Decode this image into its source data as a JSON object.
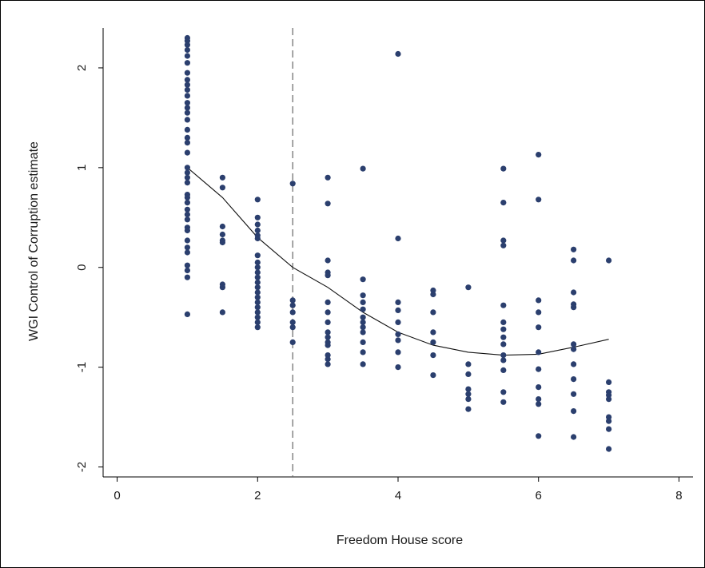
{
  "chart_data": {
    "type": "scatter",
    "xlabel": "Freedom House score",
    "ylabel": "WGI Control of Corruption estimate",
    "xlim": [
      -0.2,
      8.2
    ],
    "ylim": [
      -2.1,
      2.4
    ],
    "x_ticks": [
      "0",
      "2",
      "4",
      "6",
      "8"
    ],
    "x_tick_values": [
      0,
      2,
      4,
      6,
      8
    ],
    "y_ticks": [
      "-2",
      "-1",
      "0",
      "1",
      "2"
    ],
    "y_tick_values": [
      -2,
      -1,
      0,
      1,
      2
    ],
    "grid": false,
    "reference_line": {
      "x": 2.5,
      "style": "dashed"
    },
    "fit_curve": {
      "type": "quadratic",
      "x_range": [
        1,
        7
      ],
      "points": [
        [
          1,
          1.0
        ],
        [
          1.5,
          0.7
        ],
        [
          2,
          0.3
        ],
        [
          2.5,
          0.0
        ],
        [
          3,
          -0.2
        ],
        [
          3.5,
          -0.45
        ],
        [
          4,
          -0.65
        ],
        [
          4.5,
          -0.78
        ],
        [
          5,
          -0.85
        ],
        [
          5.5,
          -0.88
        ],
        [
          6,
          -0.87
        ],
        [
          6.5,
          -0.8
        ],
        [
          7,
          -0.72
        ]
      ]
    },
    "series": [
      {
        "marker_color": "#2b3f6e",
        "points": [
          [
            1,
            2.3
          ],
          [
            1,
            2.27
          ],
          [
            1,
            2.23
          ],
          [
            1,
            2.18
          ],
          [
            1,
            2.12
          ],
          [
            1,
            2.05
          ],
          [
            1,
            1.95
          ],
          [
            1,
            1.88
          ],
          [
            1,
            1.83
          ],
          [
            1,
            1.78
          ],
          [
            1,
            1.72
          ],
          [
            1,
            1.65
          ],
          [
            1,
            1.6
          ],
          [
            1,
            1.55
          ],
          [
            1,
            1.48
          ],
          [
            1,
            1.38
          ],
          [
            1,
            1.3
          ],
          [
            1,
            1.25
          ],
          [
            1,
            1.15
          ],
          [
            1,
            1.0
          ],
          [
            1,
            0.95
          ],
          [
            1,
            0.9
          ],
          [
            1,
            0.85
          ],
          [
            1,
            0.73
          ],
          [
            1,
            0.7
          ],
          [
            1,
            0.65
          ],
          [
            1,
            0.58
          ],
          [
            1,
            0.53
          ],
          [
            1,
            0.48
          ],
          [
            1,
            0.4
          ],
          [
            1,
            0.37
          ],
          [
            1,
            0.27
          ],
          [
            1,
            0.2
          ],
          [
            1,
            0.15
          ],
          [
            1,
            0.02
          ],
          [
            1,
            -0.03
          ],
          [
            1,
            -0.1
          ],
          [
            1,
            -0.47
          ],
          [
            1.5,
            0.9
          ],
          [
            1.5,
            0.8
          ],
          [
            1.5,
            0.41
          ],
          [
            1.5,
            0.33
          ],
          [
            1.5,
            0.27
          ],
          [
            1.5,
            0.25
          ],
          [
            1.5,
            -0.17
          ],
          [
            1.5,
            -0.2
          ],
          [
            1.5,
            -0.45
          ],
          [
            2,
            0.68
          ],
          [
            2,
            0.5
          ],
          [
            2,
            0.43
          ],
          [
            2,
            0.37
          ],
          [
            2,
            0.32
          ],
          [
            2,
            0.29
          ],
          [
            2,
            0.12
          ],
          [
            2,
            0.05
          ],
          [
            2,
            0.0
          ],
          [
            2,
            -0.05
          ],
          [
            2,
            -0.1
          ],
          [
            2,
            -0.15
          ],
          [
            2,
            -0.2
          ],
          [
            2,
            -0.25
          ],
          [
            2,
            -0.3
          ],
          [
            2,
            -0.35
          ],
          [
            2,
            -0.4
          ],
          [
            2,
            -0.45
          ],
          [
            2,
            -0.5
          ],
          [
            2,
            -0.55
          ],
          [
            2,
            -0.6
          ],
          [
            2.5,
            0.84
          ],
          [
            2.5,
            -0.33
          ],
          [
            2.5,
            -0.38
          ],
          [
            2.5,
            -0.45
          ],
          [
            2.5,
            -0.55
          ],
          [
            2.5,
            -0.6
          ],
          [
            2.5,
            -0.75
          ],
          [
            3,
            0.9
          ],
          [
            3,
            0.64
          ],
          [
            3,
            0.07
          ],
          [
            3,
            -0.05
          ],
          [
            3,
            -0.08
          ],
          [
            3,
            -0.35
          ],
          [
            3,
            -0.45
          ],
          [
            3,
            -0.55
          ],
          [
            3,
            -0.65
          ],
          [
            3,
            -0.7
          ],
          [
            3,
            -0.75
          ],
          [
            3,
            -0.78
          ],
          [
            3,
            -0.88
          ],
          [
            3,
            -0.92
          ],
          [
            3,
            -0.97
          ],
          [
            3.5,
            0.99
          ],
          [
            3.5,
            -0.12
          ],
          [
            3.5,
            -0.28
          ],
          [
            3.5,
            -0.35
          ],
          [
            3.5,
            -0.42
          ],
          [
            3.5,
            -0.5
          ],
          [
            3.5,
            -0.55
          ],
          [
            3.5,
            -0.6
          ],
          [
            3.5,
            -0.65
          ],
          [
            3.5,
            -0.75
          ],
          [
            3.5,
            -0.85
          ],
          [
            3.5,
            -0.97
          ],
          [
            4,
            2.14
          ],
          [
            4,
            0.29
          ],
          [
            4,
            -0.35
          ],
          [
            4,
            -0.43
          ],
          [
            4,
            -0.55
          ],
          [
            4,
            -0.67
          ],
          [
            4,
            -0.73
          ],
          [
            4,
            -0.85
          ],
          [
            4,
            -1.0
          ],
          [
            4.5,
            -0.23
          ],
          [
            4.5,
            -0.27
          ],
          [
            4.5,
            -0.45
          ],
          [
            4.5,
            -0.65
          ],
          [
            4.5,
            -0.75
          ],
          [
            4.5,
            -0.88
          ],
          [
            4.5,
            -1.08
          ],
          [
            5,
            -0.2
          ],
          [
            5,
            -0.97
          ],
          [
            5,
            -1.07
          ],
          [
            5,
            -1.22
          ],
          [
            5,
            -1.27
          ],
          [
            5,
            -1.32
          ],
          [
            5,
            -1.42
          ],
          [
            5.5,
            0.99
          ],
          [
            5.5,
            0.65
          ],
          [
            5.5,
            0.27
          ],
          [
            5.5,
            0.22
          ],
          [
            5.5,
            -0.38
          ],
          [
            5.5,
            -0.55
          ],
          [
            5.5,
            -0.62
          ],
          [
            5.5,
            -0.7
          ],
          [
            5.5,
            -0.77
          ],
          [
            5.5,
            -0.88
          ],
          [
            5.5,
            -0.93
          ],
          [
            5.5,
            -1.03
          ],
          [
            5.5,
            -1.25
          ],
          [
            5.5,
            -1.35
          ],
          [
            6,
            1.13
          ],
          [
            6,
            0.68
          ],
          [
            6,
            -0.33
          ],
          [
            6,
            -0.45
          ],
          [
            6,
            -0.6
          ],
          [
            6,
            -0.85
          ],
          [
            6,
            -1.02
          ],
          [
            6,
            -1.2
          ],
          [
            6,
            -1.32
          ],
          [
            6,
            -1.37
          ],
          [
            6,
            -1.69
          ],
          [
            6.5,
            0.18
          ],
          [
            6.5,
            0.07
          ],
          [
            6.5,
            -0.25
          ],
          [
            6.5,
            -0.37
          ],
          [
            6.5,
            -0.4
          ],
          [
            6.5,
            -0.77
          ],
          [
            6.5,
            -0.82
          ],
          [
            6.5,
            -0.97
          ],
          [
            6.5,
            -1.12
          ],
          [
            6.5,
            -1.27
          ],
          [
            6.5,
            -1.44
          ],
          [
            6.5,
            -1.7
          ],
          [
            7,
            0.07
          ],
          [
            7,
            -1.15
          ],
          [
            7,
            -1.25
          ],
          [
            7,
            -1.28
          ],
          [
            7,
            -1.32
          ],
          [
            7,
            -1.5
          ],
          [
            7,
            -1.54
          ],
          [
            7,
            -1.62
          ],
          [
            7,
            -1.82
          ]
        ]
      }
    ]
  }
}
